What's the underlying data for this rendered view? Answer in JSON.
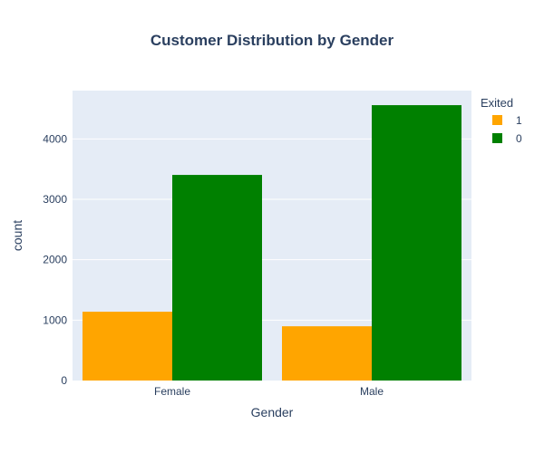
{
  "chart_data": {
    "type": "bar",
    "title": "Customer Distribution by Gender",
    "xlabel": "Gender",
    "ylabel": "count",
    "categories": [
      "Female",
      "Male"
    ],
    "ylim": [
      0,
      4800
    ],
    "yticks": [
      0,
      1000,
      2000,
      3000,
      4000
    ],
    "grid": true,
    "legend_position": "top-right",
    "legend_title": "Exited",
    "series": [
      {
        "name": "1",
        "color": "#FFA500",
        "values": [
          1139,
          898
        ]
      },
      {
        "name": "0",
        "color": "#008000",
        "values": [
          3404,
          4559
        ]
      }
    ],
    "plot_background": "#E5ECF6"
  }
}
